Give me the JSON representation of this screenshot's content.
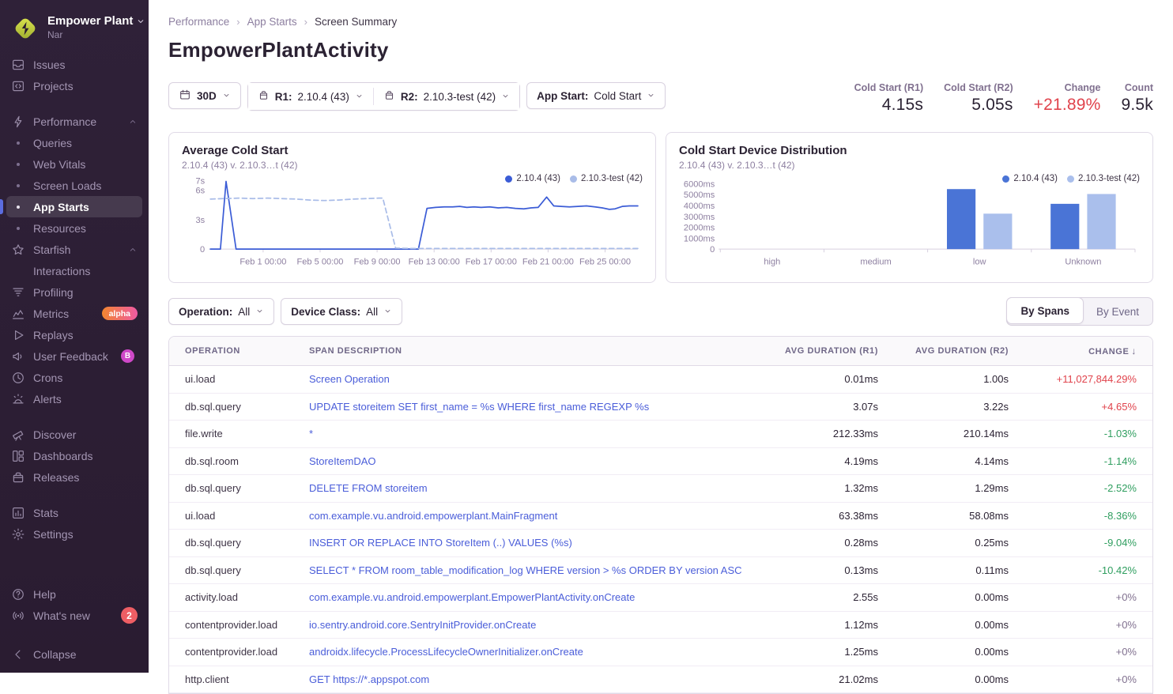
{
  "colors": {
    "accent_red": "#e0434c",
    "accent_green": "#2f9e5f",
    "muted_purple": "#80708f",
    "link_blue": "#4a5dd9",
    "series_dark_blue": "#3b5cd6",
    "series_light_blue": "#a9bce8",
    "bar_dark_blue": "#4a74d6",
    "bar_light_blue": "#aabfec"
  },
  "sidebar": {
    "org": {
      "name": "Empower Plant",
      "project": "Nar"
    },
    "sections": [
      {
        "items": [
          {
            "icon": "issues-icon",
            "label": "Issues"
          },
          {
            "icon": "projects-icon",
            "label": "Projects"
          }
        ]
      },
      {
        "items": [
          {
            "icon": "lightning-icon",
            "label": "Performance",
            "chevron": "up"
          },
          {
            "bullet": true,
            "label": "Queries"
          },
          {
            "bullet": true,
            "label": "Web Vitals"
          },
          {
            "bullet": true,
            "label": "Screen Loads"
          },
          {
            "bullet": true,
            "label": "App Starts",
            "selected": true
          },
          {
            "bullet": true,
            "label": "Resources"
          },
          {
            "icon": "star-icon",
            "label": "Starfish",
            "chevron": "up"
          },
          {
            "indent": true,
            "label": "Interactions"
          },
          {
            "icon": "profiling-icon",
            "label": "Profiling"
          },
          {
            "icon": "metrics-icon",
            "label": "Metrics",
            "badge": {
              "text": "alpha",
              "type": "alpha"
            }
          },
          {
            "icon": "replays-icon",
            "label": "Replays"
          },
          {
            "icon": "feedback-icon",
            "label": "User Feedback",
            "badge": {
              "text": "B",
              "type": "beta"
            }
          },
          {
            "icon": "crons-icon",
            "label": "Crons"
          },
          {
            "icon": "alerts-icon",
            "label": "Alerts"
          }
        ]
      },
      {
        "items": [
          {
            "icon": "discover-icon",
            "label": "Discover"
          },
          {
            "icon": "dashboards-icon",
            "label": "Dashboards"
          },
          {
            "icon": "releases-icon",
            "label": "Releases"
          }
        ]
      },
      {
        "items": [
          {
            "icon": "stats-icon",
            "label": "Stats"
          },
          {
            "icon": "settings-icon",
            "label": "Settings"
          }
        ]
      }
    ],
    "footer": [
      {
        "icon": "help-icon",
        "label": "Help"
      },
      {
        "icon": "whats-new-icon",
        "label": "What's new",
        "badge": {
          "text": "2",
          "type": "count"
        }
      }
    ],
    "collapse": {
      "icon": "collapse-icon",
      "label": "Collapse"
    }
  },
  "breadcrumb": [
    {
      "label": "Performance"
    },
    {
      "label": "App Starts"
    },
    {
      "label": "Screen Summary",
      "current": true
    }
  ],
  "page": {
    "title": "EmpowerPlantActivity"
  },
  "filters": {
    "date": {
      "label": "30D"
    },
    "r1": {
      "label": "R1:",
      "value": "2.10.4 (43)"
    },
    "r2": {
      "label": "R2:",
      "value": "2.10.3-test (42)"
    },
    "app_start": {
      "label": "App Start:",
      "value": "Cold Start"
    },
    "operation": {
      "label": "Operation:",
      "value": "All"
    },
    "device_class": {
      "label": "Device Class:",
      "value": "All"
    }
  },
  "stats": [
    {
      "label": "Cold Start (R1)",
      "value": "4.15s"
    },
    {
      "label": "Cold Start (R2)",
      "value": "5.05s"
    },
    {
      "label": "Change",
      "value": "+21.89%",
      "accent": "red"
    },
    {
      "label": "Count",
      "value": "9.5k"
    }
  ],
  "tabs": [
    {
      "label": "By Spans",
      "active": true
    },
    {
      "label": "By Event",
      "active": false
    }
  ],
  "chart_data": [
    {
      "type": "line",
      "title": "Average Cold Start",
      "subtitle": "2.10.4 (43) v. 2.10.3…t (42)",
      "ylabel": "seconds",
      "ylim": [
        0,
        7
      ],
      "yticks": [
        {
          "v": 0,
          "label": "0"
        },
        {
          "v": 3,
          "label": "3s"
        },
        {
          "v": 6,
          "label": "6s"
        },
        {
          "v": 7,
          "label": "7s"
        }
      ],
      "xlim": [
        0,
        30
      ],
      "xticks": [
        {
          "v": 3.7,
          "label": "Feb 1 00:00"
        },
        {
          "v": 7.7,
          "label": "Feb 5 00:00"
        },
        {
          "v": 11.7,
          "label": "Feb 9 00:00"
        },
        {
          "v": 15.7,
          "label": "Feb 13 00:00"
        },
        {
          "v": 19.7,
          "label": "Feb 17 00:00"
        },
        {
          "v": 23.7,
          "label": "Feb 21 00:00"
        },
        {
          "v": 27.7,
          "label": "Feb 25 00:00"
        }
      ],
      "legend_position": "top-right",
      "grid": false,
      "series": [
        {
          "name": "2.10.4 (43)",
          "color": "#3b5cd6",
          "style": "solid",
          "points": [
            [
              0,
              0
            ],
            [
              0.7,
              0
            ],
            [
              1.1,
              6.9
            ],
            [
              1.8,
              0
            ],
            [
              4,
              0
            ],
            [
              8,
              0
            ],
            [
              12,
              0
            ],
            [
              14.6,
              0
            ],
            [
              15.2,
              4.15
            ],
            [
              15.8,
              4.25
            ],
            [
              16.4,
              4.3
            ],
            [
              17,
              4.3
            ],
            [
              17.5,
              4.35
            ],
            [
              18,
              4.25
            ],
            [
              18.5,
              4.3
            ],
            [
              19,
              4.25
            ],
            [
              19.6,
              4.3
            ],
            [
              20.2,
              4.2
            ],
            [
              20.8,
              4.25
            ],
            [
              21.4,
              4.15
            ],
            [
              22,
              4.1
            ],
            [
              22.5,
              4.2
            ],
            [
              23,
              4.25
            ],
            [
              23.6,
              5.3
            ],
            [
              24.1,
              4.4
            ],
            [
              24.6,
              4.35
            ],
            [
              25.2,
              4.3
            ],
            [
              25.8,
              4.35
            ],
            [
              26.4,
              4.4
            ],
            [
              27,
              4.3
            ],
            [
              27.5,
              4.2
            ],
            [
              28,
              4.05
            ],
            [
              28.4,
              4.1
            ],
            [
              28.9,
              4.35
            ],
            [
              29.4,
              4.4
            ],
            [
              30,
              4.4
            ]
          ]
        },
        {
          "name": "2.10.3-test (42)",
          "color": "#a9bce8",
          "style": "dashed",
          "points": [
            [
              0,
              5.1
            ],
            [
              1,
              5.15
            ],
            [
              2,
              5.2
            ],
            [
              3,
              5.15
            ],
            [
              4,
              5.2
            ],
            [
              5,
              5.15
            ],
            [
              6,
              5.1
            ],
            [
              7,
              5.0
            ],
            [
              8,
              4.95
            ],
            [
              9,
              5.0
            ],
            [
              10,
              5.1
            ],
            [
              11,
              5.15
            ],
            [
              11.8,
              5.2
            ],
            [
              12.1,
              5.2
            ],
            [
              13,
              0.1
            ],
            [
              14,
              0.07
            ],
            [
              17,
              0.07
            ],
            [
              21,
              0.07
            ],
            [
              25,
              0.07
            ],
            [
              30,
              0.07
            ]
          ]
        }
      ]
    },
    {
      "type": "bar",
      "title": "Cold Start Device Distribution",
      "subtitle": "2.10.4 (43) v. 2.10.3…t (42)",
      "ylabel": "ms",
      "ylim": [
        0,
        6000
      ],
      "yticks": [
        {
          "v": 0,
          "label": "0"
        },
        {
          "v": 1000,
          "label": "1000ms"
        },
        {
          "v": 2000,
          "label": "2000ms"
        },
        {
          "v": 3000,
          "label": "3000ms"
        },
        {
          "v": 4000,
          "label": "4000ms"
        },
        {
          "v": 5000,
          "label": "5000ms"
        },
        {
          "v": 6000,
          "label": "6000ms"
        }
      ],
      "categories": [
        "high",
        "medium",
        "low",
        "Unknown"
      ],
      "legend_position": "top-right",
      "grid": false,
      "series": [
        {
          "name": "2.10.4 (43)",
          "color": "#4a74d6",
          "values": [
            0,
            0,
            5500,
            4150
          ]
        },
        {
          "name": "2.10.3-test (42)",
          "color": "#aabfec",
          "values": [
            0,
            0,
            3250,
            5050
          ]
        }
      ]
    }
  ],
  "table": {
    "columns": [
      {
        "label": "OPERATION",
        "align": "left"
      },
      {
        "label": "SPAN DESCRIPTION",
        "align": "left"
      },
      {
        "label": "AVG DURATION (R1)",
        "align": "right"
      },
      {
        "label": "AVG DURATION (R2)",
        "align": "right"
      },
      {
        "label": "CHANGE",
        "align": "right",
        "sorted": "desc"
      }
    ],
    "rows": [
      {
        "operation": "ui.load",
        "description": "Screen Operation",
        "r1": "0.01ms",
        "r2": "1.00s",
        "change": "+11,027,844.29%",
        "change_color": "red"
      },
      {
        "operation": "db.sql.query",
        "description": "UPDATE storeitem SET first_name = %s WHERE first_name REGEXP %s",
        "r1": "3.07s",
        "r2": "3.22s",
        "change": "+4.65%",
        "change_color": "red"
      },
      {
        "operation": "file.write",
        "description": "*",
        "r1": "212.33ms",
        "r2": "210.14ms",
        "change": "-1.03%",
        "change_color": "green"
      },
      {
        "operation": "db.sql.room",
        "description": "StoreItemDAO",
        "r1": "4.19ms",
        "r2": "4.14ms",
        "change": "-1.14%",
        "change_color": "green"
      },
      {
        "operation": "db.sql.query",
        "description": "DELETE FROM storeitem",
        "r1": "1.32ms",
        "r2": "1.29ms",
        "change": "-2.52%",
        "change_color": "green"
      },
      {
        "operation": "ui.load",
        "description": "com.example.vu.android.empowerplant.MainFragment",
        "r1": "63.38ms",
        "r2": "58.08ms",
        "change": "-8.36%",
        "change_color": "green"
      },
      {
        "operation": "db.sql.query",
        "description": "INSERT OR REPLACE INTO StoreItem (..) VALUES (%s)",
        "r1": "0.28ms",
        "r2": "0.25ms",
        "change": "-9.04%",
        "change_color": "green"
      },
      {
        "operation": "db.sql.query",
        "description": "SELECT * FROM room_table_modification_log WHERE version > %s ORDER BY version ASC",
        "r1": "0.13ms",
        "r2": "0.11ms",
        "change": "-10.42%",
        "change_color": "green"
      },
      {
        "operation": "activity.load",
        "description": "com.example.vu.android.empowerplant.EmpowerPlantActivity.onCreate",
        "r1": "2.55s",
        "r2": "0.00ms",
        "change": "+0%",
        "change_color": "muted"
      },
      {
        "operation": "contentprovider.load",
        "description": "io.sentry.android.core.SentryInitProvider.onCreate",
        "r1": "1.12ms",
        "r2": "0.00ms",
        "change": "+0%",
        "change_color": "muted"
      },
      {
        "operation": "contentprovider.load",
        "description": "androidx.lifecycle.ProcessLifecycleOwnerInitializer.onCreate",
        "r1": "1.25ms",
        "r2": "0.00ms",
        "change": "+0%",
        "change_color": "muted"
      },
      {
        "operation": "http.client",
        "description": "GET https://*.appspot.com",
        "r1": "21.02ms",
        "r2": "0.00ms",
        "change": "+0%",
        "change_color": "muted"
      }
    ]
  }
}
